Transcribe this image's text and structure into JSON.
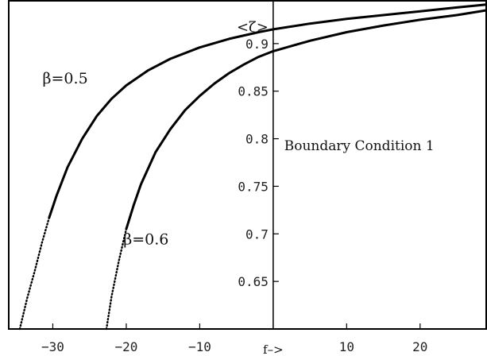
{
  "chart_data": {
    "type": "line",
    "title": "Boundary Condition 1",
    "xlabel": "f–>",
    "ylabel": "<ζ>",
    "xlim": [
      -36,
      29
    ],
    "ylim": [
      0.6,
      0.945
    ],
    "x_ticks": [
      -30,
      -20,
      -10,
      10,
      20
    ],
    "x_tick_labels": [
      "−30",
      "−20",
      "−10",
      "10",
      "20"
    ],
    "y_ticks": [
      0.65,
      0.7,
      0.75,
      0.8,
      0.85,
      0.9
    ],
    "y_tick_labels": [
      "0.65",
      "0.7",
      "0.75",
      "0.8",
      "0.85",
      "0.9"
    ],
    "grid": false,
    "series": [
      {
        "name": "β=0.5",
        "dotted_until_x": -30.5,
        "x": [
          -34.5,
          -33.5,
          -32.5,
          -31.5,
          -30.5,
          -29.5,
          -28,
          -26,
          -24,
          -22,
          -20,
          -17,
          -14,
          -10,
          -6,
          -2,
          0,
          5,
          10,
          15,
          20,
          25,
          29
        ],
        "y": [
          0.6,
          0.632,
          0.66,
          0.69,
          0.717,
          0.74,
          0.77,
          0.8,
          0.824,
          0.842,
          0.856,
          0.872,
          0.884,
          0.896,
          0.905,
          0.912,
          0.915,
          0.921,
          0.926,
          0.93,
          0.934,
          0.938,
          0.941
        ]
      },
      {
        "name": "β=0.6",
        "dotted_until_x": -19.5,
        "x": [
          -22.7,
          -22,
          -21,
          -20,
          -19,
          -18,
          -16,
          -14,
          -12,
          -10,
          -8,
          -6,
          -4,
          -2,
          0,
          5,
          10,
          15,
          20,
          25,
          29
        ],
        "y": [
          0.6,
          0.634,
          0.672,
          0.705,
          0.73,
          0.752,
          0.786,
          0.81,
          0.83,
          0.845,
          0.858,
          0.869,
          0.878,
          0.886,
          0.892,
          0.903,
          0.912,
          0.919,
          0.925,
          0.93,
          0.935
        ]
      }
    ],
    "annotations": [
      {
        "text": "β=0.5",
        "at_x": -31.4,
        "at_y": 0.858
      },
      {
        "text": "β=0.6",
        "at_x": -20.4,
        "at_y": 0.689
      },
      {
        "text": "Boundary Condition 1",
        "at_x": 1.5,
        "at_y": 0.788
      }
    ]
  }
}
